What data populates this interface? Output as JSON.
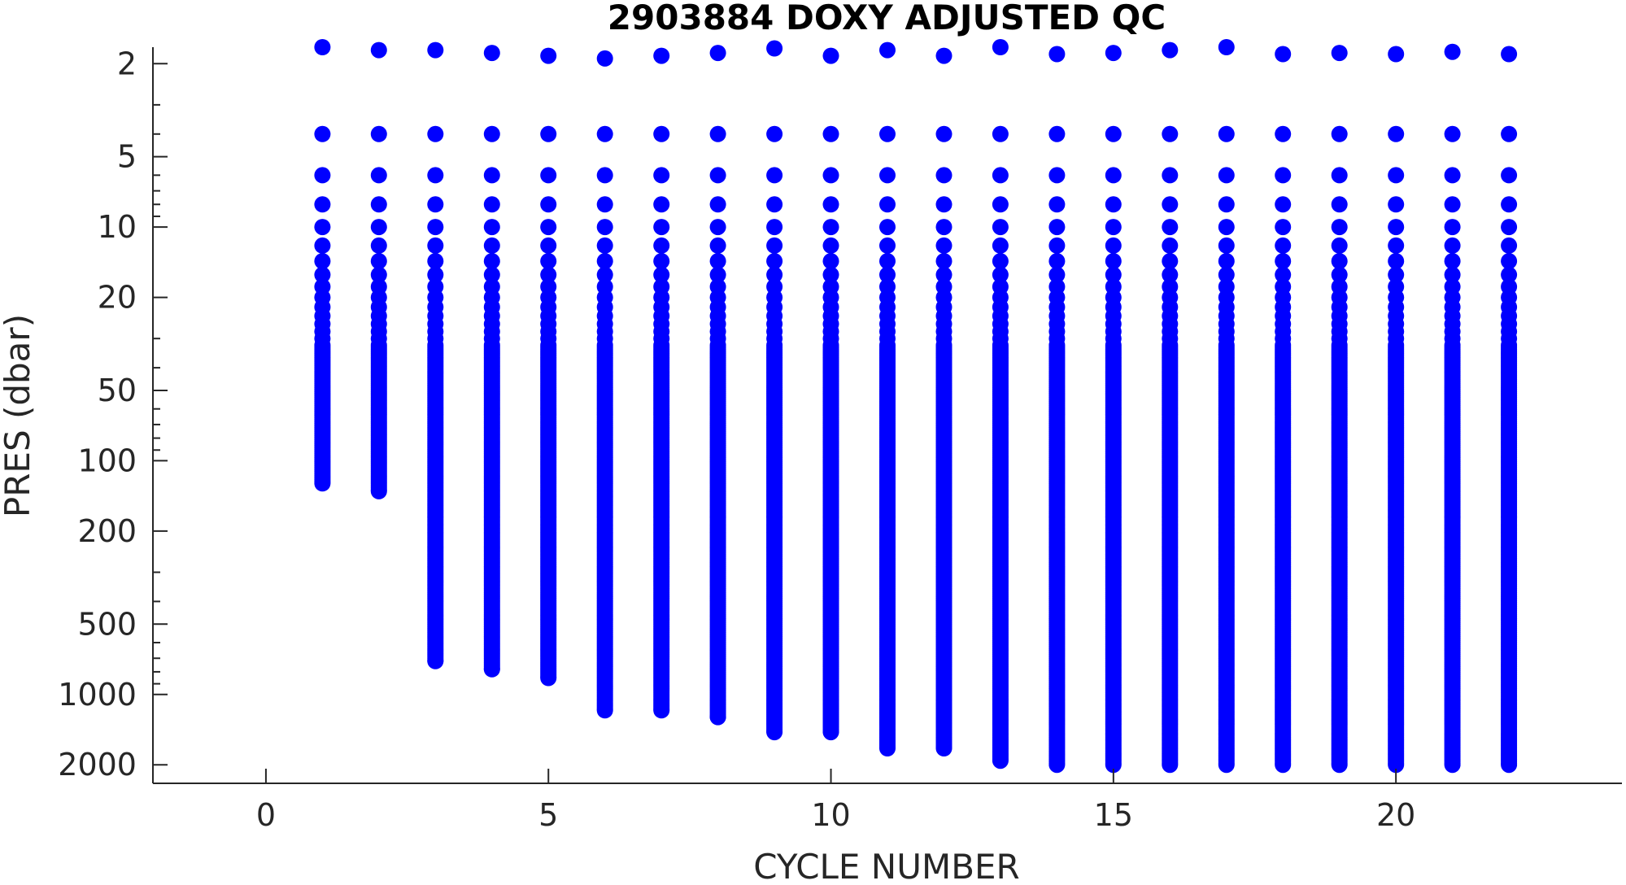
{
  "chart_data": {
    "type": "scatter",
    "title": "2903884  DOXY ADJUSTED QC",
    "xlabel": "CYCLE NUMBER",
    "ylabel": "PRES (dbar)",
    "xlim": [
      -2,
      24
    ],
    "ylim": [
      1.7,
      2400
    ],
    "y_scale": "log",
    "y_reversed": true,
    "grid": false,
    "marker_color": "#0000ff",
    "x_ticks": [
      0,
      5,
      10,
      15,
      20
    ],
    "x_tick_labels": [
      "0",
      "5",
      "10",
      "15",
      "20"
    ],
    "y_ticks": [
      2,
      5,
      10,
      20,
      50,
      100,
      200,
      500,
      1000,
      2000
    ],
    "y_tick_labels": [
      "2",
      "5",
      "10",
      "20",
      "50",
      "100",
      "200",
      "500",
      "1000",
      "2000"
    ],
    "profiles": [
      {
        "cycle": 1,
        "top_pres": 1.7,
        "max_pres": 125
      },
      {
        "cycle": 2,
        "top_pres": 1.75,
        "max_pres": 135
      },
      {
        "cycle": 3,
        "top_pres": 1.75,
        "max_pres": 720
      },
      {
        "cycle": 4,
        "top_pres": 1.8,
        "max_pres": 780
      },
      {
        "cycle": 5,
        "top_pres": 1.85,
        "max_pres": 850
      },
      {
        "cycle": 6,
        "top_pres": 1.9,
        "max_pres": 1170
      },
      {
        "cycle": 7,
        "top_pres": 1.85,
        "max_pres": 1170
      },
      {
        "cycle": 8,
        "top_pres": 1.8,
        "max_pres": 1250
      },
      {
        "cycle": 9,
        "top_pres": 1.72,
        "max_pres": 1450
      },
      {
        "cycle": 10,
        "top_pres": 1.85,
        "max_pres": 1450
      },
      {
        "cycle": 11,
        "top_pres": 1.75,
        "max_pres": 1700
      },
      {
        "cycle": 12,
        "top_pres": 1.85,
        "max_pres": 1700
      },
      {
        "cycle": 13,
        "top_pres": 1.7,
        "max_pres": 1920
      },
      {
        "cycle": 14,
        "top_pres": 1.82,
        "max_pres": 2000
      },
      {
        "cycle": 15,
        "top_pres": 1.8,
        "max_pres": 2000
      },
      {
        "cycle": 16,
        "top_pres": 1.75,
        "max_pres": 2000
      },
      {
        "cycle": 17,
        "top_pres": 1.7,
        "max_pres": 2000
      },
      {
        "cycle": 18,
        "top_pres": 1.82,
        "max_pres": 2000
      },
      {
        "cycle": 19,
        "top_pres": 1.8,
        "max_pres": 2000
      },
      {
        "cycle": 20,
        "top_pres": 1.82,
        "max_pres": 2000
      },
      {
        "cycle": 21,
        "top_pres": 1.78,
        "max_pres": 2000
      },
      {
        "cycle": 22,
        "top_pres": 1.82,
        "max_pres": 2000
      }
    ]
  }
}
